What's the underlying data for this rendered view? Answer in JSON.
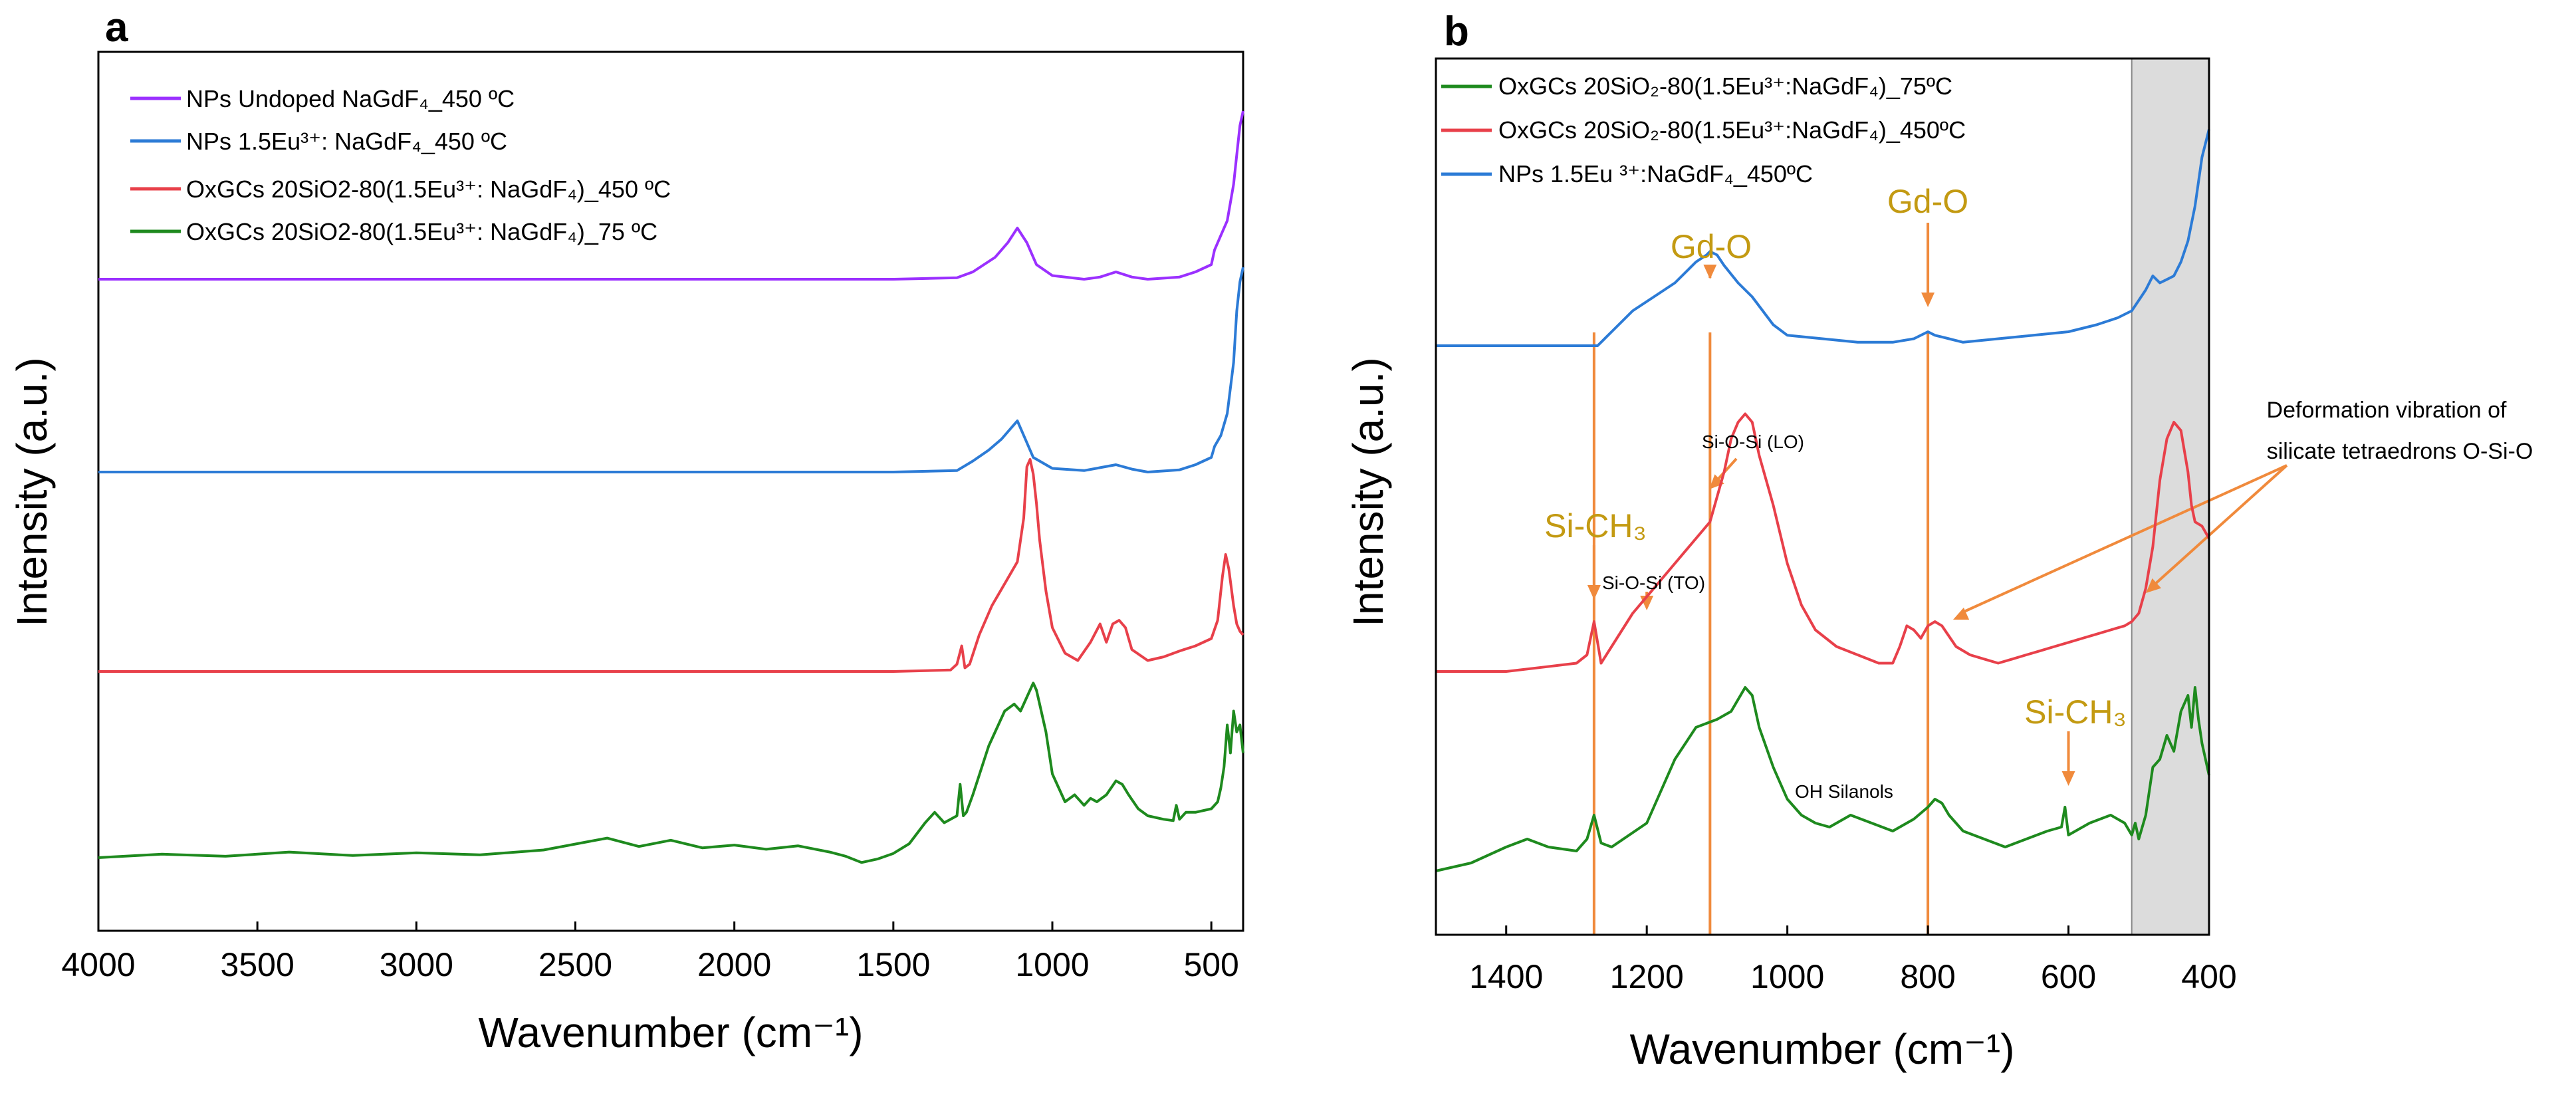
{
  "colors": {
    "purple": "#9b30ff",
    "blue": "#2c7bd6",
    "red": "#e8404a",
    "green": "#1e8a1e",
    "annotation_line": "#f08a3c",
    "annotation_text": "#c39a12",
    "shade": "#dcdcdc"
  },
  "chart_data": [
    {
      "panel_label": "a",
      "type": "line",
      "xlabel": "Wavenumber (cm⁻¹)",
      "ylabel": "Intensity (a.u.)",
      "xlim": [
        4000,
        400
      ],
      "ylim": [
        0,
        100
      ],
      "xticks": [
        4000,
        3500,
        3000,
        2500,
        2000,
        1500,
        1000,
        500
      ],
      "xtick_labels": [
        "4000",
        "3500",
        "3000",
        "2500",
        "2000",
        "1500",
        "1000",
        "500"
      ],
      "legend_position": "top-left",
      "series": [
        {
          "name": "NPs Undoped NaGdF₄_450 ºC",
          "color_key": "purple",
          "x": [
            4000,
            1500,
            1300,
            1250,
            1180,
            1140,
            1110,
            1080,
            1050,
            1000,
            900,
            850,
            800,
            750,
            700,
            600,
            550,
            500,
            490,
            470,
            450,
            430,
            420,
            410,
            400
          ],
          "y": [
            73,
            73,
            73.2,
            74,
            76,
            78,
            80,
            78,
            75,
            73.5,
            73,
            73.3,
            74,
            73.3,
            73,
            73.3,
            74,
            75,
            77,
            79,
            81,
            86,
            90,
            94,
            96
          ]
        },
        {
          "name": "NPs 1.5Eu³⁺: NaGdF₄_450 ºC",
          "color_key": "blue",
          "x": [
            4000,
            1500,
            1300,
            1250,
            1200,
            1160,
            1130,
            1110,
            1090,
            1060,
            1000,
            900,
            850,
            800,
            750,
            700,
            600,
            550,
            500,
            490,
            470,
            450,
            430,
            420,
            410,
            400
          ],
          "y": [
            50,
            50,
            50.2,
            51.5,
            53,
            54.5,
            56,
            57,
            55,
            52,
            50.5,
            50.2,
            50.6,
            51,
            50.4,
            50,
            50.3,
            51,
            52,
            53.5,
            55,
            58,
            65,
            72,
            76,
            78
          ]
        },
        {
          "name": "OxGCs 20SiO2-80(1.5Eu³⁺: NaGdF₄)_450 ºC",
          "color_key": "red",
          "x": [
            4000,
            1500,
            1320,
            1300,
            1285,
            1275,
            1260,
            1230,
            1190,
            1150,
            1110,
            1090,
            1080,
            1070,
            1060,
            1050,
            1040,
            1020,
            1000,
            960,
            920,
            880,
            850,
            830,
            810,
            790,
            770,
            750,
            700,
            650,
            600,
            550,
            500,
            480,
            465,
            455,
            445,
            430,
            420,
            410,
            400
          ],
          "y": [
            27,
            27,
            27.2,
            28,
            30.5,
            27.5,
            28,
            32,
            36,
            39,
            42,
            48,
            55,
            56,
            54,
            50,
            45,
            38,
            33,
            29.5,
            28.5,
            31,
            33.5,
            31,
            33.5,
            34,
            33,
            30,
            28.5,
            29,
            29.8,
            30.5,
            31.5,
            34,
            40,
            43,
            41,
            36,
            33.5,
            32.5,
            32
          ]
        },
        {
          "name": "OxGCs 20SiO2-80(1.5Eu³⁺: NaGdF₄)_75 ºC",
          "color_key": "green",
          "x": [
            4000,
            3800,
            3600,
            3400,
            3200,
            3000,
            2800,
            2600,
            2400,
            2300,
            2200,
            2100,
            2000,
            1900,
            1800,
            1700,
            1650,
            1600,
            1550,
            1500,
            1450,
            1400,
            1370,
            1340,
            1300,
            1290,
            1280,
            1270,
            1250,
            1200,
            1150,
            1120,
            1100,
            1080,
            1060,
            1050,
            1040,
            1020,
            1000,
            960,
            930,
            900,
            880,
            860,
            830,
            800,
            780,
            760,
            730,
            700,
            650,
            620,
            610,
            600,
            580,
            550,
            500,
            480,
            470,
            460,
            450,
            440,
            430,
            420,
            410,
            400
          ],
          "y": [
            9,
            9.5,
            9.2,
            9.8,
            9.3,
            9.7,
            9.4,
            10.1,
            11.8,
            10.6,
            11.5,
            10.4,
            10.8,
            10.2,
            10.7,
            9.8,
            9.2,
            8.3,
            8.8,
            9.6,
            11,
            14,
            15.5,
            14,
            15,
            19.5,
            15,
            15.5,
            18,
            25,
            30,
            31,
            30,
            32,
            34,
            33,
            31,
            27,
            21,
            17,
            18,
            16.5,
            17.5,
            17,
            18,
            20,
            19.5,
            18,
            16,
            15,
            14.5,
            14.3,
            16.5,
            14.5,
            15.5,
            15.5,
            16,
            17,
            19,
            22,
            28,
            24,
            30,
            27,
            28,
            24
          ]
        }
      ]
    },
    {
      "panel_label": "b",
      "type": "line",
      "xlabel": "Wavenumber (cm⁻¹)",
      "ylabel": "Intensity (a.u.)",
      "xlim": [
        1500,
        400
      ],
      "ylim": [
        0,
        100
      ],
      "xticks": [
        1400,
        1200,
        1000,
        800,
        600,
        400
      ],
      "xtick_labels": [
        "1400",
        "1200",
        "1000",
        "800",
        "600",
        "400"
      ],
      "legend_position": "top-left",
      "shaded_region": [
        510,
        400
      ],
      "series": [
        {
          "name": "OxGCs 20SiO₂-80(1.5Eu³⁺:NaGdF₄)_75ºC",
          "color_key": "green",
          "x": [
            1500,
            1450,
            1400,
            1370,
            1340,
            1300,
            1285,
            1275,
            1265,
            1250,
            1200,
            1160,
            1130,
            1100,
            1080,
            1060,
            1050,
            1040,
            1020,
            1000,
            980,
            960,
            940,
            910,
            880,
            850,
            820,
            800,
            790,
            780,
            770,
            750,
            720,
            690,
            660,
            630,
            610,
            605,
            600,
            590,
            570,
            540,
            520,
            510,
            505,
            500,
            490,
            480,
            470,
            460,
            450,
            440,
            430,
            425,
            420,
            415,
            410,
            405,
            400
          ],
          "y": [
            8,
            9,
            11,
            12,
            11,
            10.5,
            12,
            15,
            11.5,
            11,
            14,
            22,
            26,
            27,
            28,
            31,
            30,
            26,
            21,
            17,
            15,
            14,
            13.5,
            15,
            14,
            13,
            14.5,
            16,
            17,
            16.5,
            15,
            13,
            12,
            11,
            12,
            13,
            13.5,
            16,
            12.5,
            13,
            14,
            15,
            14,
            12.5,
            14,
            12,
            15,
            21,
            22,
            25,
            23,
            28,
            30,
            26,
            31,
            27,
            24,
            22,
            20
          ]
        },
        {
          "name": "OxGCs 20SiO₂-80(1.5Eu³⁺:NaGdF₄)_450ºC",
          "color_key": "red",
          "x": [
            1500,
            1400,
            1350,
            1300,
            1285,
            1275,
            1265,
            1250,
            1220,
            1190,
            1150,
            1110,
            1090,
            1080,
            1070,
            1060,
            1050,
            1040,
            1020,
            1000,
            980,
            960,
            930,
            900,
            870,
            850,
            840,
            830,
            820,
            810,
            800,
            790,
            780,
            760,
            740,
            720,
            700,
            680,
            660,
            640,
            620,
            600,
            580,
            560,
            540,
            520,
            510,
            500,
            490,
            480,
            470,
            460,
            450,
            440,
            430,
            425,
            420,
            410,
            400
          ],
          "y": [
            32,
            32,
            32.5,
            33,
            34,
            38,
            33,
            35,
            39,
            42,
            46,
            50,
            56,
            60,
            62,
            63,
            62,
            58,
            52,
            45,
            40,
            37,
            35,
            34,
            33,
            33,
            35,
            37.5,
            37,
            36,
            37.5,
            38,
            37.5,
            35,
            34,
            33.5,
            33,
            33.5,
            34,
            34.5,
            35,
            35.5,
            36,
            36.5,
            37,
            37.5,
            38,
            39,
            42,
            47,
            55,
            60,
            62,
            61,
            56,
            52,
            50,
            49.5,
            48
          ]
        },
        {
          "name": "NPs 1.5Eu ³⁺:NaGdF₄_450ºC",
          "color_key": "blue",
          "x": [
            1500,
            1400,
            1300,
            1270,
            1250,
            1220,
            1190,
            1160,
            1130,
            1115,
            1110,
            1100,
            1090,
            1070,
            1050,
            1020,
            1000,
            950,
            900,
            850,
            820,
            800,
            790,
            770,
            750,
            700,
            650,
            600,
            560,
            530,
            510,
            500,
            490,
            480,
            470,
            460,
            450,
            440,
            430,
            420,
            410,
            400
          ],
          "y": [
            66,
            66,
            66,
            66,
            68,
            71,
            73,
            75,
            78,
            79,
            79.5,
            79,
            77.5,
            75,
            73,
            69,
            67.5,
            67,
            66.5,
            66.5,
            67,
            68,
            67.5,
            67,
            66.5,
            67,
            67.5,
            68,
            69,
            70,
            71,
            72.5,
            74,
            76,
            75,
            75.5,
            76,
            78,
            81,
            86,
            93,
            97
          ]
        }
      ],
      "annotations": {
        "gd_o_1": "Gd-O",
        "gd_o_2": "Gd-O",
        "si_ch3_1": "Si-CH₃",
        "si_ch3_2": "Si-CH₃",
        "si_o_si_lo": "Si-O-Si (LO)",
        "si_o_si_to": "Si-O-Si (TO)",
        "oh_silanols": "OH Silanols",
        "deformation_line1": "Deformation vibration of",
        "deformation_line2": "silicate tetraedrons O-Si-O"
      }
    }
  ]
}
